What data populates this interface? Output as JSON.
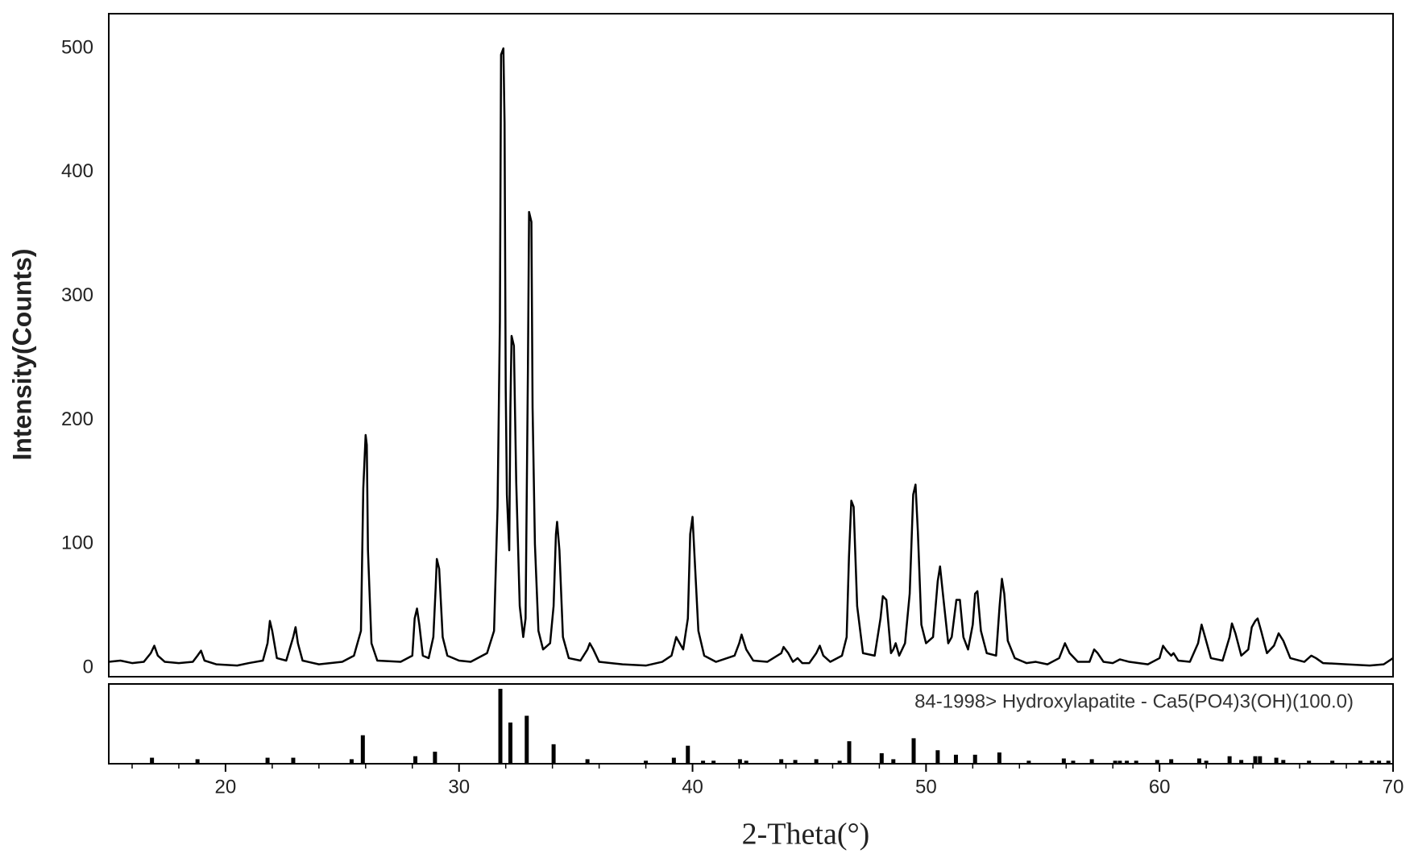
{
  "chart_data": {
    "type": "line",
    "x_label": "2-Theta(°)",
    "y_label": "Intensity(Counts)",
    "xlim": [
      15,
      70
    ],
    "ylim": [
      -7,
      528
    ],
    "xticks": [
      20,
      30,
      40,
      50,
      60,
      70
    ],
    "xminorticks": [
      16,
      18,
      22,
      24,
      26,
      28,
      32,
      34,
      36,
      38,
      42,
      44,
      46,
      48,
      52,
      54,
      56,
      58,
      62,
      64,
      66,
      68
    ],
    "yticks": [
      0,
      100,
      200,
      300,
      400,
      500
    ],
    "series": [
      {
        "color": "#000000",
        "x": [
          15.0,
          15.5,
          16,
          16.5,
          16.8,
          16.95,
          17.1,
          17.4,
          18,
          18.6,
          18.8,
          18.95,
          19.1,
          19.6,
          20.5,
          21,
          21.6,
          21.8,
          21.9,
          22.0,
          22.2,
          22.6,
          22.9,
          23.0,
          23.1,
          23.3,
          24,
          25,
          25.5,
          25.8,
          25.9,
          26.0,
          26.05,
          26.1,
          26.25,
          26.5,
          27.5,
          28.0,
          28.1,
          28.2,
          28.3,
          28.45,
          28.7,
          28.9,
          29.0,
          29.05,
          29.15,
          29.3,
          29.5,
          30,
          30.5,
          31.2,
          31.5,
          31.65,
          31.75,
          31.8,
          31.9,
          31.95,
          32.0,
          32.05,
          32.15,
          32.2,
          32.25,
          32.35,
          32.45,
          32.6,
          32.75,
          32.85,
          32.95,
          33.0,
          33.1,
          33.15,
          33.25,
          33.4,
          33.6,
          33.9,
          34.05,
          34.15,
          34.2,
          34.3,
          34.45,
          34.7,
          35.2,
          35.5,
          35.6,
          35.75,
          36,
          37,
          38,
          38.7,
          39.1,
          39.3,
          39.45,
          39.6,
          39.8,
          39.9,
          40.0,
          40.1,
          40.25,
          40.5,
          41,
          41.8,
          42.0,
          42.1,
          42.3,
          42.6,
          43.2,
          43.8,
          43.9,
          44.1,
          44.3,
          44.5,
          44.7,
          45,
          45.3,
          45.45,
          45.6,
          45.9,
          46.4,
          46.6,
          46.7,
          46.8,
          46.9,
          47.05,
          47.3,
          47.8,
          48.05,
          48.15,
          48.3,
          48.5,
          48.6,
          48.7,
          48.85,
          49.1,
          49.3,
          49.45,
          49.55,
          49.65,
          49.8,
          50.0,
          50.3,
          50.5,
          50.6,
          50.75,
          50.95,
          51.1,
          51.3,
          51.45,
          51.6,
          51.8,
          52.0,
          52.1,
          52.2,
          52.35,
          52.6,
          53.0,
          53.15,
          53.25,
          53.35,
          53.5,
          53.8,
          54.3,
          54.7,
          55.2,
          55.7,
          55.95,
          56.15,
          56.5,
          57,
          57.2,
          57.35,
          57.6,
          58,
          58.3,
          58.7,
          59.5,
          60,
          60.15,
          60.3,
          60.5,
          60.6,
          60.8,
          61.3,
          61.65,
          61.8,
          61.95,
          62.2,
          62.7,
          63.0,
          63.1,
          63.25,
          63.5,
          63.8,
          63.95,
          64.1,
          64.2,
          64.35,
          64.6,
          64.9,
          65.1,
          65.3,
          65.6,
          66.2,
          66.5,
          66.7,
          67,
          68,
          69,
          69.6,
          70
        ],
        "values": [
          5,
          6,
          4,
          5,
          12,
          18,
          10,
          5,
          4,
          5,
          10,
          14,
          6,
          3,
          2,
          4,
          6,
          20,
          38,
          30,
          8,
          6,
          25,
          33,
          20,
          6,
          3,
          5,
          10,
          30,
          145,
          188,
          180,
          95,
          20,
          6,
          5,
          10,
          40,
          48,
          35,
          10,
          8,
          25,
          65,
          88,
          80,
          25,
          10,
          6,
          5,
          12,
          30,
          130,
          280,
          495,
          500,
          440,
          225,
          140,
          95,
          210,
          268,
          260,
          150,
          50,
          25,
          40,
          240,
          368,
          360,
          210,
          100,
          30,
          15,
          20,
          50,
          108,
          118,
          95,
          25,
          8,
          6,
          15,
          20,
          15,
          5,
          3,
          2,
          5,
          10,
          25,
          20,
          15,
          40,
          108,
          122,
          85,
          30,
          10,
          5,
          10,
          20,
          27,
          15,
          6,
          5,
          12,
          17,
          12,
          5,
          8,
          4,
          4,
          12,
          18,
          10,
          5,
          10,
          25,
          90,
          135,
          130,
          50,
          12,
          10,
          40,
          58,
          55,
          12,
          15,
          20,
          10,
          20,
          60,
          140,
          148,
          110,
          35,
          20,
          25,
          70,
          82,
          55,
          20,
          25,
          55,
          55,
          25,
          15,
          35,
          60,
          62,
          30,
          12,
          10,
          50,
          72,
          60,
          22,
          8,
          4,
          5,
          3,
          8,
          20,
          12,
          5,
          5,
          15,
          12,
          5,
          4,
          7,
          5,
          3,
          8,
          18,
          14,
          10,
          12,
          6,
          5,
          20,
          35,
          25,
          8,
          6,
          25,
          36,
          28,
          10,
          15,
          33,
          38,
          40,
          30,
          12,
          18,
          28,
          22,
          8,
          5,
          10,
          8,
          4,
          3,
          2,
          3,
          8
        ]
      }
    ],
    "reference": {
      "name": "84-1998> Hydroxylapatite - Ca5(PO4)3(OH)(100.0)",
      "color": "#000000",
      "x": [
        16.85,
        18.8,
        21.8,
        22.9,
        25.4,
        25.88,
        28.13,
        28.97,
        31.77,
        32.2,
        32.9,
        34.05,
        35.5,
        38.0,
        39.2,
        39.8,
        40.45,
        40.9,
        42.03,
        42.3,
        43.8,
        44.4,
        45.3,
        46.3,
        46.71,
        48.1,
        48.6,
        49.47,
        50.5,
        51.28,
        52.1,
        53.14,
        54.4,
        55.9,
        56.3,
        57.1,
        58.1,
        58.3,
        58.6,
        59.0,
        59.9,
        60.5,
        61.7,
        62.0,
        63.0,
        63.5,
        64.1,
        64.3,
        65.0,
        65.3,
        66.4,
        67.4,
        68.6,
        69.1,
        69.4,
        69.8
      ],
      "values": [
        8,
        6,
        8,
        8,
        6,
        38,
        10,
        16,
        100,
        55,
        64,
        26,
        6,
        4,
        8,
        24,
        4,
        4,
        6,
        4,
        6,
        5,
        6,
        4,
        30,
        14,
        6,
        34,
        18,
        12,
        12,
        15,
        4,
        7,
        4,
        6,
        4,
        4,
        4,
        4,
        5,
        6,
        7,
        4,
        10,
        5,
        10,
        10,
        8,
        5,
        4,
        4,
        4,
        4,
        4,
        4
      ]
    }
  }
}
